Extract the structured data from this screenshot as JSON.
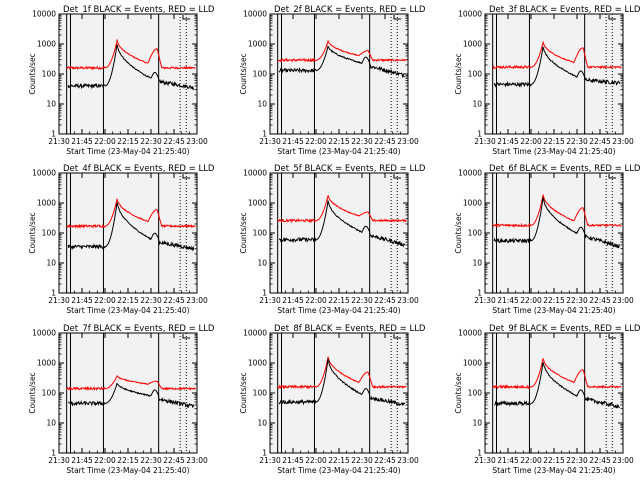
{
  "chart_data": {
    "type": "line",
    "layout": "3x3 grid",
    "x_axis": {
      "label": "Start Time (23-May-04 21:25:40)",
      "tick_labels": [
        "21:30",
        "21:45",
        "22:00",
        "22:15",
        "22:30",
        "22:45",
        "23:00"
      ],
      "tick_minutes": [
        30,
        45,
        60,
        75,
        90,
        105,
        120
      ],
      "range_minutes": [
        30,
        120
      ]
    },
    "y_axis": {
      "label": "Counts/sec",
      "scale": "log",
      "range": [
        1,
        10000
      ],
      "tick_labels": [
        "1",
        "10",
        "100",
        "1000",
        "10000"
      ]
    },
    "background_color": "#f2f2f2",
    "series_colors": {
      "events": "#000000",
      "lld": "#ff0000"
    },
    "solid_lines_minutes": [
      35,
      37.5,
      59,
      95
    ],
    "dotted_lines_minutes": [
      109,
      113
    ],
    "panels": [
      {
        "title": "Det_1f BLACK = Events, RED = LLD",
        "black_base": 40,
        "black_peak": 1100,
        "black_tail": 35,
        "red_base": 160,
        "red_peak": 1400,
        "red_bump": 700
      },
      {
        "title": "Det_2f BLACK = Events, RED = LLD",
        "black_base": 130,
        "black_peak": 900,
        "black_tail": 90,
        "red_base": 290,
        "red_peak": 1300,
        "red_bump": 600
      },
      {
        "title": "Det_3f BLACK = Events, RED = LLD",
        "black_base": 45,
        "black_peak": 900,
        "black_tail": 50,
        "red_base": 170,
        "red_peak": 1200,
        "red_bump": 750
      },
      {
        "title": "Det_4f BLACK = Events, RED = LLD",
        "black_base": 35,
        "black_peak": 1200,
        "black_tail": 30,
        "red_base": 170,
        "red_peak": 1450,
        "red_bump": 600
      },
      {
        "title": "Det_5f BLACK = Events, RED = LLD",
        "black_base": 60,
        "black_peak": 1300,
        "black_tail": 40,
        "red_base": 260,
        "red_peak": 1900,
        "red_bump": 500
      },
      {
        "title": "Det_6f BLACK = Events, RED = LLD",
        "black_base": 55,
        "black_peak": 1700,
        "black_tail": 35,
        "red_base": 180,
        "red_peak": 2000,
        "red_bump": 700
      },
      {
        "title": "Det_7f BLACK = Events, RED = LLD",
        "black_base": 45,
        "black_peak": 220,
        "black_tail": 35,
        "red_base": 140,
        "red_peak": 380,
        "red_bump": 250
      },
      {
        "title": "Det_8f BLACK = Events, RED = LLD",
        "black_base": 50,
        "black_peak": 1500,
        "black_tail": 40,
        "red_base": 160,
        "red_peak": 1700,
        "red_bump": 500
      },
      {
        "title": "Det_9f BLACK = Events, RED = LLD",
        "black_base": 45,
        "black_peak": 1200,
        "black_tail": 35,
        "red_base": 160,
        "red_peak": 1500,
        "red_bump": 600
      }
    ]
  }
}
